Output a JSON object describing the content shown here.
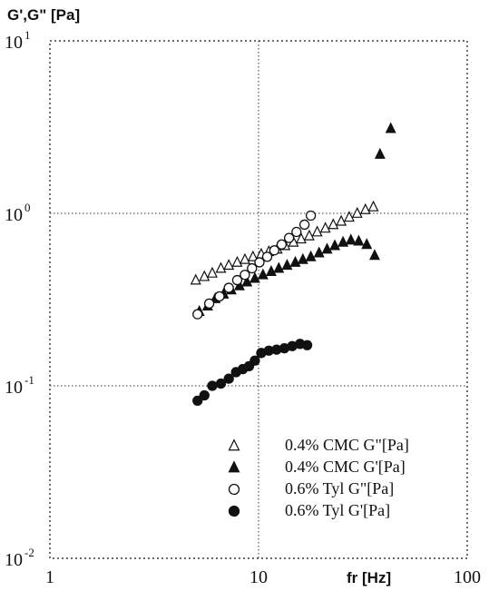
{
  "chart_data": {
    "type": "scatter",
    "ylabel": "G',G\" [Pa]",
    "xlabel": "fr [Hz]",
    "x_scale": "log",
    "y_scale": "log",
    "xlim": [
      1,
      100
    ],
    "ylim": [
      0.01,
      10
    ],
    "grid": "dotted, major decades",
    "legend_position": "bottom-right",
    "x_ticks": [
      {
        "value": 1,
        "label": "1"
      },
      {
        "value": 10,
        "label": "10"
      },
      {
        "value": 100,
        "label": "100"
      }
    ],
    "y_ticks": [
      {
        "value": 0.01,
        "base": "10",
        "exp": "-2"
      },
      {
        "value": 0.1,
        "base": "10",
        "exp": "-1"
      },
      {
        "value": 1,
        "base": "10",
        "exp": "0"
      },
      {
        "value": 10,
        "base": "10",
        "exp": "1"
      }
    ],
    "series": [
      {
        "name": "0.4% CMC G\"[Pa]",
        "marker": "triangle-open",
        "x": [
          5.0,
          5.5,
          6.0,
          6.6,
          7.2,
          7.9,
          8.6,
          9.4,
          10.3,
          11.2,
          12.3,
          13.4,
          14.7,
          16.0,
          17.5,
          19.1,
          20.9,
          22.8,
          24.9,
          27.2,
          29.7,
          32.5,
          35.5
        ],
        "y": [
          0.41,
          0.43,
          0.45,
          0.48,
          0.5,
          0.52,
          0.54,
          0.56,
          0.58,
          0.6,
          0.62,
          0.65,
          0.68,
          0.71,
          0.74,
          0.78,
          0.82,
          0.86,
          0.9,
          0.95,
          1.0,
          1.05,
          1.09
        ]
      },
      {
        "name": "0.4% CMC G'[Pa]",
        "marker": "triangle-filled",
        "x": [
          5.2,
          5.7,
          6.2,
          6.8,
          7.4,
          8.1,
          8.8,
          9.6,
          10.5,
          11.5,
          12.5,
          13.7,
          15.0,
          16.3,
          17.8,
          19.5,
          21.3,
          23.2,
          25.4,
          27.7,
          30.2,
          33.0,
          36.0,
          38.2,
          43.0
        ],
        "y": [
          0.27,
          0.29,
          0.32,
          0.34,
          0.36,
          0.38,
          0.4,
          0.42,
          0.44,
          0.46,
          0.48,
          0.5,
          0.52,
          0.54,
          0.56,
          0.59,
          0.62,
          0.65,
          0.68,
          0.7,
          0.69,
          0.66,
          0.57,
          2.2,
          3.1
        ]
      },
      {
        "name": "0.6% Tyl G\"[Pa]",
        "marker": "circle-open",
        "x": [
          5.1,
          5.8,
          6.5,
          7.2,
          7.9,
          8.6,
          9.3,
          10.1,
          11.0,
          11.9,
          12.9,
          14.0,
          15.2,
          16.6,
          17.8
        ],
        "y": [
          0.26,
          0.3,
          0.33,
          0.37,
          0.41,
          0.44,
          0.48,
          0.52,
          0.56,
          0.61,
          0.66,
          0.72,
          0.78,
          0.86,
          0.97
        ]
      },
      {
        "name": "0.6% Tyl G'[Pa]",
        "marker": "circle-filled",
        "x": [
          5.1,
          5.5,
          6.0,
          6.6,
          7.2,
          7.8,
          8.4,
          9.0,
          9.6,
          10.3,
          11.2,
          12.2,
          13.3,
          14.5,
          15.8,
          17.1
        ],
        "y": [
          0.082,
          0.088,
          0.1,
          0.103,
          0.11,
          0.12,
          0.125,
          0.13,
          0.14,
          0.155,
          0.16,
          0.162,
          0.165,
          0.17,
          0.175,
          0.172
        ]
      }
    ]
  }
}
